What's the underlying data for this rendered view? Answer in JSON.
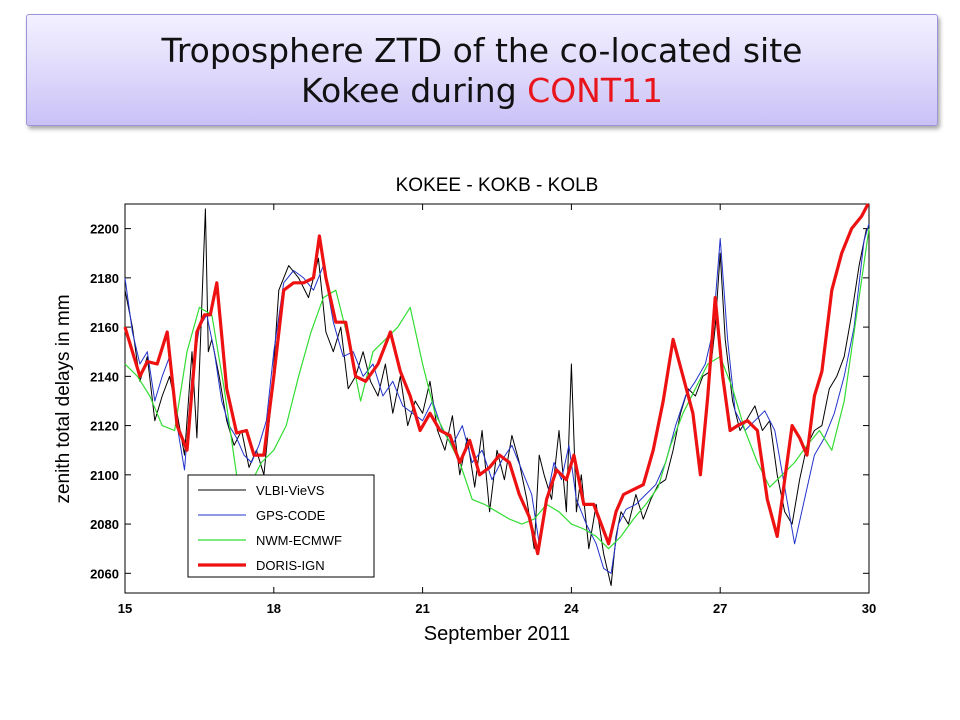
{
  "slide": {
    "title_line1": "Troposphere ZTD of the co-located site",
    "title_line2_prefix": "Kokee during ",
    "title_line2_highlight": "CONT11",
    "highlight_color": "#e8161c"
  },
  "chart_data": {
    "type": "line",
    "title": "KOKEE    - KOKB - KOLB",
    "xlabel": "September 2011",
    "ylabel": "zenith total delays in mm",
    "xlim": [
      15,
      30
    ],
    "ylim": [
      2052,
      2210
    ],
    "xticks": [
      15,
      18,
      21,
      24,
      27,
      30
    ],
    "yticks": [
      2060,
      2080,
      2100,
      2120,
      2140,
      2160,
      2180,
      2200
    ],
    "grid": false,
    "legend_position": "bottom-left",
    "series": [
      {
        "name": "VLBI-VieVS",
        "color": "#000000",
        "width": 1,
        "x": [
          15.0,
          15.15,
          15.3,
          15.45,
          15.6,
          15.75,
          15.9,
          16.05,
          16.2,
          16.35,
          16.45,
          16.55,
          16.62,
          16.68,
          16.75,
          16.9,
          17.05,
          17.2,
          17.35,
          17.5,
          17.65,
          17.8,
          17.95,
          18.1,
          18.3,
          18.5,
          18.7,
          18.9,
          19.05,
          19.2,
          19.35,
          19.5,
          19.65,
          19.8,
          19.95,
          20.1,
          20.25,
          20.4,
          20.55,
          20.7,
          20.85,
          21.0,
          21.15,
          21.3,
          21.45,
          21.6,
          21.75,
          21.9,
          22.05,
          22.2,
          22.35,
          22.5,
          22.65,
          22.8,
          22.95,
          23.1,
          23.25,
          23.35,
          23.45,
          23.6,
          23.75,
          23.9,
          24.0,
          24.1,
          24.2,
          24.35,
          24.5,
          24.65,
          24.8,
          24.9,
          25.0,
          25.15,
          25.3,
          25.45,
          25.6,
          25.75,
          25.9,
          26.05,
          26.2,
          26.35,
          26.5,
          26.65,
          26.8,
          26.9,
          27.0,
          27.1,
          27.25,
          27.4,
          27.55,
          27.7,
          27.85,
          28.0,
          28.15,
          28.3,
          28.45,
          28.6,
          28.75,
          28.9,
          29.05,
          29.2,
          29.35,
          29.5,
          29.65,
          29.8,
          29.95
        ],
        "y": [
          2175,
          2160,
          2138,
          2148,
          2122,
          2132,
          2140,
          2125,
          2108,
          2150,
          2115,
          2170,
          2208,
          2150,
          2155,
          2140,
          2122,
          2112,
          2118,
          2103,
          2110,
          2100,
          2130,
          2175,
          2185,
          2180,
          2172,
          2188,
          2158,
          2150,
          2160,
          2135,
          2140,
          2150,
          2138,
          2132,
          2145,
          2125,
          2140,
          2120,
          2130,
          2125,
          2138,
          2118,
          2110,
          2124,
          2100,
          2115,
          2095,
          2118,
          2085,
          2110,
          2098,
          2116,
          2105,
          2090,
          2070,
          2108,
          2100,
          2090,
          2118,
          2085,
          2145,
          2085,
          2100,
          2070,
          2088,
          2068,
          2055,
          2075,
          2085,
          2080,
          2092,
          2082,
          2090,
          2096,
          2098,
          2110,
          2125,
          2135,
          2132,
          2140,
          2142,
          2160,
          2190,
          2155,
          2130,
          2118,
          2123,
          2128,
          2118,
          2122,
          2100,
          2085,
          2080,
          2098,
          2112,
          2118,
          2120,
          2135,
          2140,
          2148,
          2165,
          2185,
          2200
        ]
      },
      {
        "name": "GPS-CODE",
        "color": "#2233cc",
        "width": 1,
        "x": [
          15.0,
          15.15,
          15.3,
          15.45,
          15.6,
          15.75,
          15.9,
          16.05,
          16.2,
          16.35,
          16.5,
          16.65,
          16.8,
          16.95,
          17.1,
          17.25,
          17.4,
          17.55,
          17.7,
          17.85,
          18.0,
          18.2,
          18.4,
          18.6,
          18.8,
          19.0,
          19.2,
          19.4,
          19.6,
          19.8,
          20.0,
          20.2,
          20.4,
          20.6,
          20.8,
          21.0,
          21.2,
          21.4,
          21.6,
          21.8,
          22.0,
          22.2,
          22.4,
          22.6,
          22.8,
          23.0,
          23.2,
          23.35,
          23.5,
          23.65,
          23.8,
          23.95,
          24.1,
          24.3,
          24.5,
          24.65,
          24.8,
          24.95,
          25.1,
          25.3,
          25.5,
          25.7,
          25.9,
          26.1,
          26.3,
          26.5,
          26.7,
          26.85,
          27.0,
          27.15,
          27.3,
          27.5,
          27.7,
          27.9,
          28.1,
          28.3,
          28.5,
          28.7,
          28.9,
          29.1,
          29.3,
          29.5,
          29.7,
          29.9,
          30.0
        ],
        "y": [
          2180,
          2158,
          2145,
          2150,
          2130,
          2140,
          2148,
          2120,
          2102,
          2140,
          2160,
          2165,
          2150,
          2130,
          2120,
          2115,
          2108,
          2105,
          2112,
          2122,
          2150,
          2178,
          2183,
          2180,
          2175,
          2185,
          2162,
          2148,
          2150,
          2140,
          2145,
          2132,
          2138,
          2128,
          2125,
          2122,
          2130,
          2118,
          2112,
          2120,
          2105,
          2110,
          2098,
          2106,
          2112,
          2102,
          2092,
          2072,
          2090,
          2105,
          2098,
          2112,
          2090,
          2080,
          2072,
          2062,
          2060,
          2080,
          2086,
          2088,
          2092,
          2096,
          2105,
          2120,
          2132,
          2138,
          2145,
          2158,
          2196,
          2155,
          2126,
          2118,
          2122,
          2126,
          2118,
          2095,
          2072,
          2090,
          2108,
          2115,
          2125,
          2140,
          2160,
          2195,
          2202
        ]
      },
      {
        "name": "NWM-ECMWF",
        "color": "#33dd33",
        "width": 1.2,
        "x": [
          15.0,
          15.25,
          15.5,
          15.75,
          16.0,
          16.25,
          16.5,
          16.75,
          17.0,
          17.25,
          17.5,
          17.75,
          18.0,
          18.25,
          18.5,
          18.75,
          19.0,
          19.25,
          19.5,
          19.75,
          20.0,
          20.25,
          20.5,
          20.75,
          21.0,
          21.25,
          21.5,
          21.75,
          22.0,
          22.25,
          22.5,
          22.75,
          23.0,
          23.25,
          23.5,
          23.75,
          24.0,
          24.25,
          24.5,
          24.75,
          25.0,
          25.25,
          25.5,
          25.75,
          26.0,
          26.25,
          26.5,
          26.75,
          27.0,
          27.25,
          27.5,
          27.75,
          28.0,
          28.25,
          28.5,
          28.75,
          29.0,
          29.25,
          29.5,
          29.75,
          30.0
        ],
        "y": [
          2145,
          2140,
          2132,
          2120,
          2118,
          2150,
          2168,
          2165,
          2135,
          2100,
          2095,
          2105,
          2110,
          2120,
          2140,
          2158,
          2172,
          2175,
          2155,
          2130,
          2150,
          2155,
          2160,
          2168,
          2145,
          2125,
          2115,
          2105,
          2090,
          2088,
          2085,
          2082,
          2080,
          2082,
          2088,
          2085,
          2080,
          2078,
          2075,
          2070,
          2075,
          2082,
          2088,
          2095,
          2112,
          2125,
          2135,
          2145,
          2148,
          2135,
          2118,
          2105,
          2095,
          2100,
          2105,
          2112,
          2118,
          2110,
          2130,
          2165,
          2200
        ]
      },
      {
        "name": "DORIS-IGN",
        "color": "#ee1111",
        "width": 3.2,
        "x": [
          15.0,
          15.15,
          15.3,
          15.45,
          15.65,
          15.85,
          16.05,
          16.25,
          16.45,
          16.6,
          16.72,
          16.85,
          17.05,
          17.25,
          17.45,
          17.6,
          17.8,
          18.0,
          18.2,
          18.4,
          18.6,
          18.8,
          18.92,
          19.05,
          19.25,
          19.45,
          19.65,
          19.85,
          20.1,
          20.35,
          20.55,
          20.75,
          20.95,
          21.15,
          21.35,
          21.55,
          21.75,
          21.95,
          22.15,
          22.35,
          22.55,
          22.75,
          22.95,
          23.15,
          23.32,
          23.5,
          23.7,
          23.9,
          24.05,
          24.25,
          24.45,
          24.6,
          24.75,
          24.9,
          25.05,
          25.25,
          25.45,
          25.65,
          25.85,
          26.05,
          26.25,
          26.45,
          26.6,
          26.75,
          26.9,
          27.05,
          27.2,
          27.35,
          27.55,
          27.75,
          27.95,
          28.15,
          28.3,
          28.45,
          28.6,
          28.75,
          28.9,
          29.05,
          29.25,
          29.45,
          29.65,
          29.85,
          29.98
        ],
        "y": [
          2160,
          2150,
          2140,
          2146,
          2145,
          2158,
          2120,
          2110,
          2158,
          2165,
          2165,
          2178,
          2135,
          2117,
          2118,
          2108,
          2108,
          2140,
          2175,
          2178,
          2178,
          2180,
          2197,
          2180,
          2162,
          2162,
          2140,
          2138,
          2145,
          2158,
          2142,
          2132,
          2118,
          2125,
          2118,
          2116,
          2105,
          2114,
          2100,
          2103,
          2108,
          2105,
          2092,
          2083,
          2068,
          2090,
          2102,
          2098,
          2108,
          2088,
          2088,
          2080,
          2072,
          2085,
          2092,
          2094,
          2096,
          2110,
          2130,
          2155,
          2140,
          2125,
          2100,
          2132,
          2172,
          2140,
          2118,
          2120,
          2122,
          2118,
          2090,
          2075,
          2098,
          2120,
          2115,
          2108,
          2132,
          2142,
          2175,
          2190,
          2200,
          2205,
          2210
        ]
      }
    ]
  }
}
